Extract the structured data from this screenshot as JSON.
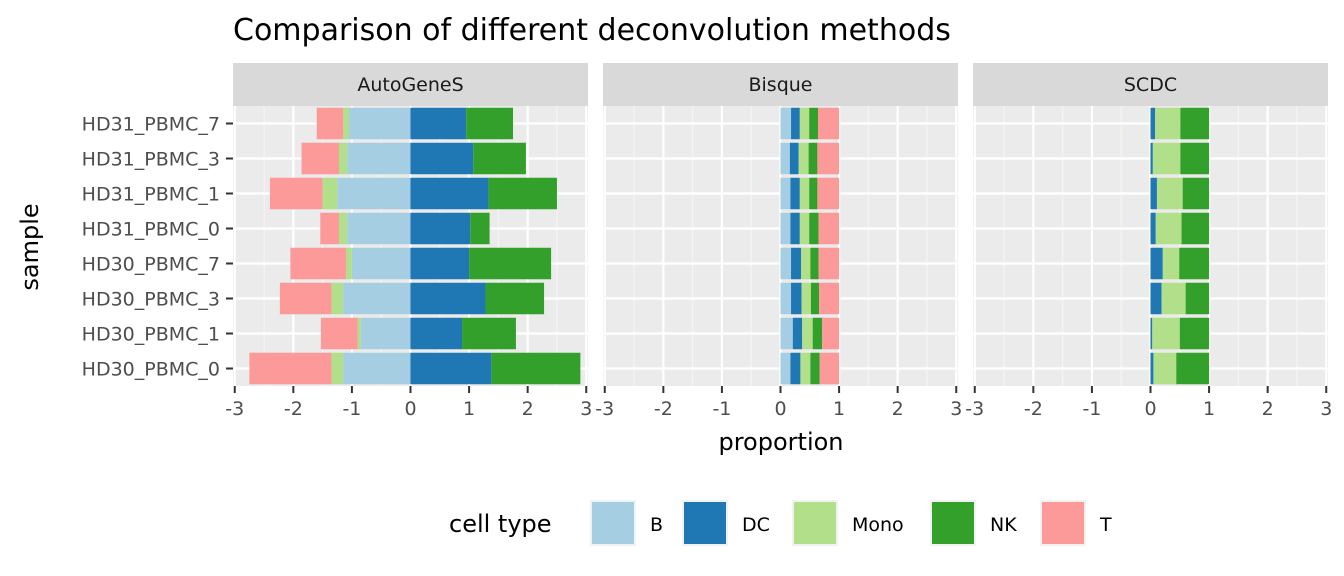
{
  "chart_data": {
    "type": "bar",
    "orientation": "horizontal",
    "stacked": "diverging",
    "title": "Comparison of different deconvolution methods",
    "xlabel": "proportion",
    "ylabel": "sample",
    "xlim": [
      -3,
      3
    ],
    "xticks": [
      -3,
      -2,
      -1,
      0,
      1,
      2,
      3
    ],
    "grid": true,
    "legend": {
      "title": "cell type",
      "position": "bottom",
      "items": [
        {
          "name": "B",
          "color": "#a6cee3"
        },
        {
          "name": "DC",
          "color": "#1f78b4"
        },
        {
          "name": "Mono",
          "color": "#b2df8a"
        },
        {
          "name": "NK",
          "color": "#33a02c"
        },
        {
          "name": "T",
          "color": "#fb9a99"
        }
      ]
    },
    "samples": [
      "HD31_PBMC_7",
      "HD31_PBMC_3",
      "HD31_PBMC_1",
      "HD31_PBMC_0",
      "HD30_PBMC_7",
      "HD30_PBMC_3",
      "HD30_PBMC_1",
      "HD30_PBMC_0"
    ],
    "series_order": [
      "B",
      "DC",
      "Mono",
      "NK",
      "T"
    ],
    "panels": [
      {
        "name": "AutoGeneS",
        "values": {
          "B": [
            -1.05,
            -1.08,
            -1.25,
            -1.08,
            -1.0,
            -1.15,
            -0.85,
            -1.15
          ],
          "DC": [
            0.95,
            1.07,
            1.33,
            1.02,
            1.0,
            1.28,
            0.88,
            1.38
          ],
          "Mono": [
            -0.1,
            -0.14,
            -0.25,
            -0.14,
            -0.1,
            -0.2,
            -0.05,
            -0.2
          ],
          "NK": [
            0.8,
            0.9,
            1.17,
            0.33,
            1.4,
            1.0,
            0.92,
            1.52
          ],
          "T": [
            -0.45,
            -0.64,
            -0.9,
            -0.32,
            -0.95,
            -0.88,
            -0.63,
            -1.4
          ]
        }
      },
      {
        "name": "Bisque",
        "values": {
          "B": [
            0.18,
            0.16,
            0.17,
            0.17,
            0.18,
            0.18,
            0.21,
            0.17
          ],
          "DC": [
            0.15,
            0.15,
            0.16,
            0.16,
            0.17,
            0.18,
            0.16,
            0.17
          ],
          "Mono": [
            0.16,
            0.17,
            0.16,
            0.16,
            0.16,
            0.16,
            0.18,
            0.17
          ],
          "NK": [
            0.15,
            0.15,
            0.14,
            0.16,
            0.14,
            0.14,
            0.16,
            0.16
          ],
          "T": [
            0.36,
            0.37,
            0.37,
            0.35,
            0.35,
            0.34,
            0.29,
            0.33
          ]
        }
      },
      {
        "name": "SCDC",
        "values": {
          "B": [
            0.0,
            0.0,
            0.0,
            0.0,
            0.0,
            0.0,
            0.0,
            0.0
          ],
          "DC": [
            0.08,
            0.04,
            0.11,
            0.09,
            0.21,
            0.19,
            0.03,
            0.05
          ],
          "Mono": [
            0.43,
            0.47,
            0.44,
            0.44,
            0.28,
            0.41,
            0.47,
            0.39
          ],
          "NK": [
            0.49,
            0.49,
            0.45,
            0.47,
            0.51,
            0.4,
            0.5,
            0.56
          ],
          "T": [
            0.0,
            0.0,
            0.0,
            0.0,
            0.0,
            0.0,
            0.0,
            0.0
          ]
        }
      }
    ]
  }
}
